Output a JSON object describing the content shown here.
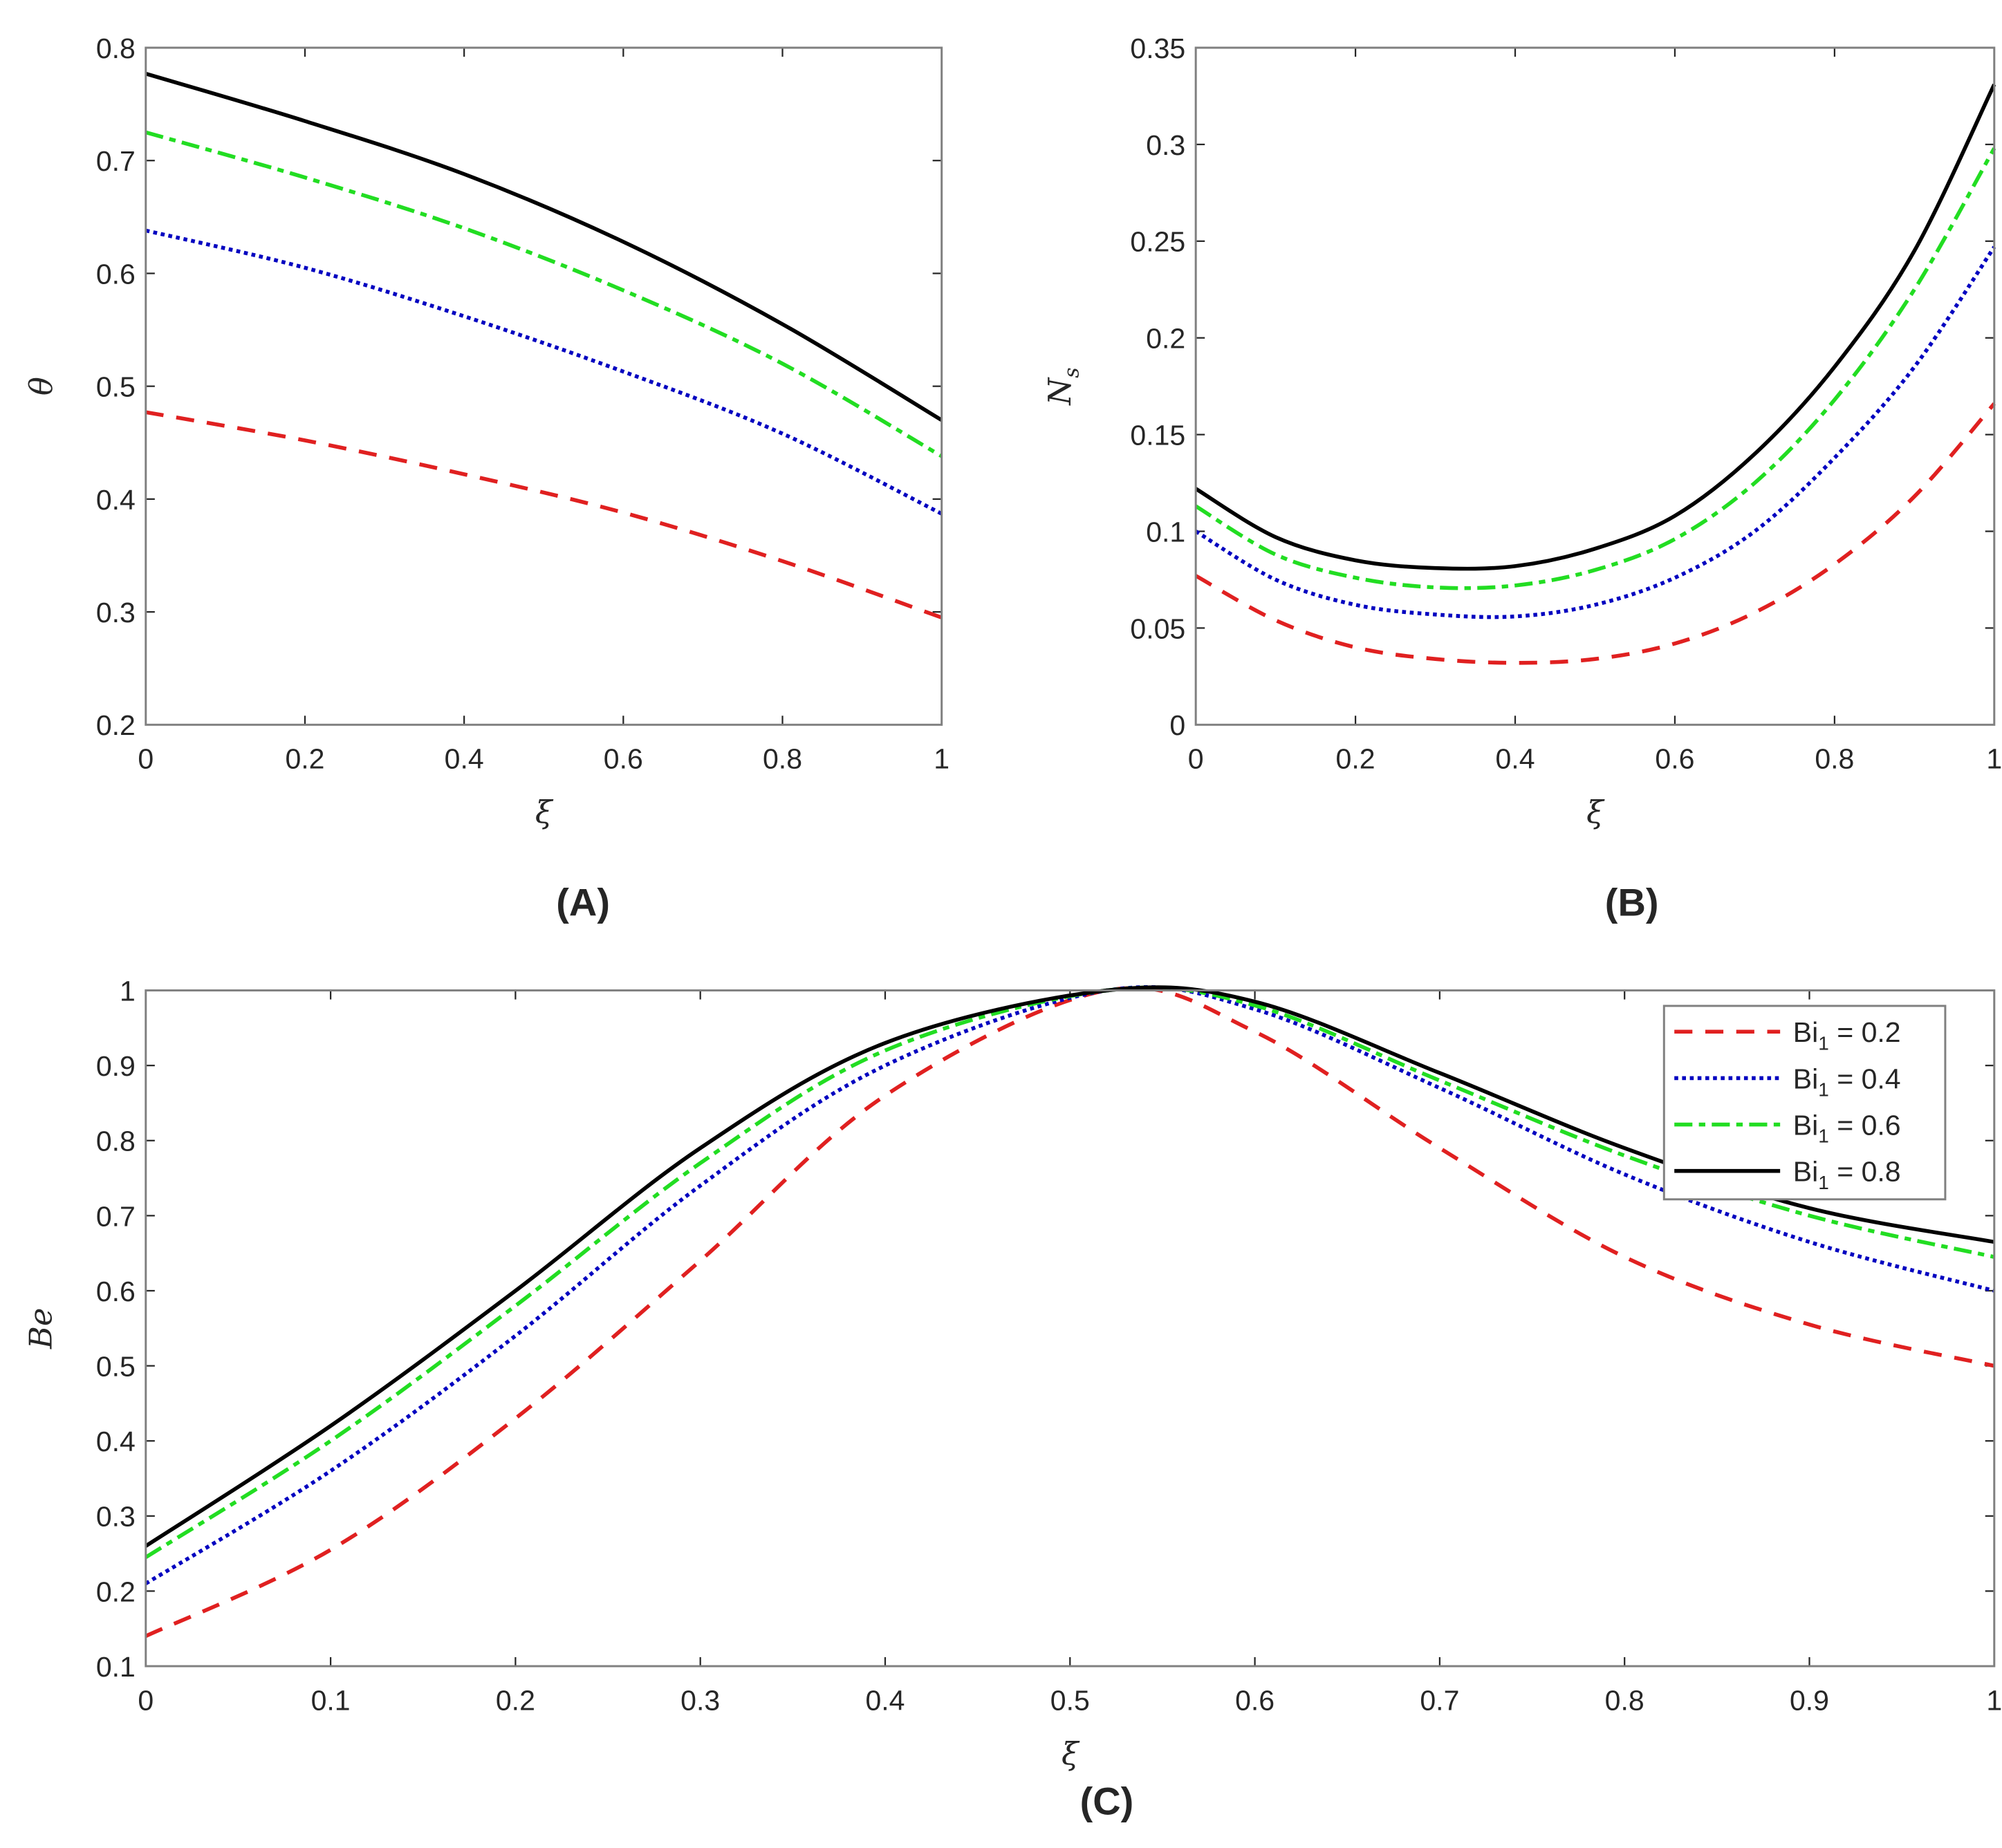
{
  "series_styles": [
    {
      "name": "Bi1 = 0.2",
      "color": "#e02020",
      "dash": "dashed"
    },
    {
      "name": "Bi1 = 0.4",
      "color": "#0000c0",
      "dash": "dotted"
    },
    {
      "name": "Bi1 = 0.6",
      "color": "#22dd22",
      "dash": "dash-dot"
    },
    {
      "name": "Bi1 = 0.8",
      "color": "#000000",
      "dash": "solid"
    }
  ],
  "legend": {
    "entries": [
      {
        "base": "Bi",
        "sub": "1",
        "rest": " = 0.2"
      },
      {
        "base": "Bi",
        "sub": "1",
        "rest": " = 0.4"
      },
      {
        "base": "Bi",
        "sub": "1",
        "rest": " = 0.6"
      },
      {
        "base": "Bi",
        "sub": "1",
        "rest": " = 0.8"
      }
    ],
    "placement": "top-right"
  },
  "chart_data": [
    {
      "type": "line",
      "panel_label": "(A)",
      "xlabel": "ξ",
      "ylabel": "θ",
      "ylabel_sub": "",
      "xlim": [
        0,
        1
      ],
      "ylim": [
        0.2,
        0.8
      ],
      "xticks": [
        "0",
        "0.2",
        "0.4",
        "0.6",
        "0.8",
        "1"
      ],
      "yticks": [
        "0.2",
        "0.3",
        "0.4",
        "0.5",
        "0.6",
        "0.7",
        "0.8"
      ],
      "x": [
        0,
        0.2,
        0.4,
        0.6,
        0.8,
        1
      ],
      "series": [
        {
          "name": "Bi1 = 0.2",
          "values": [
            0.477,
            0.452,
            0.422,
            0.388,
            0.345,
            0.295
          ]
        },
        {
          "name": "Bi1 = 0.4",
          "values": [
            0.638,
            0.605,
            0.562,
            0.513,
            0.458,
            0.387
          ]
        },
        {
          "name": "Bi1 = 0.6",
          "values": [
            0.725,
            0.685,
            0.64,
            0.585,
            0.52,
            0.438
          ]
        },
        {
          "name": "Bi1 = 0.8",
          "values": [
            0.777,
            0.735,
            0.688,
            0.628,
            0.555,
            0.47
          ]
        }
      ]
    },
    {
      "type": "line",
      "panel_label": "(B)",
      "xlabel": "ξ",
      "ylabel": "N",
      "ylabel_sub": "s",
      "xlim": [
        0,
        1
      ],
      "ylim": [
        0,
        0.35
      ],
      "xticks": [
        "0",
        "0.2",
        "0.4",
        "0.6",
        "0.8",
        "1"
      ],
      "yticks": [
        "0",
        "0.05",
        "0.1",
        "0.15",
        "0.2",
        "0.25",
        "0.3",
        "0.35"
      ],
      "x": [
        0,
        0.1,
        0.2,
        0.3,
        0.4,
        0.5,
        0.6,
        0.7,
        0.8,
        0.9,
        1
      ],
      "series": [
        {
          "name": "Bi1 = 0.2",
          "values": [
            0.077,
            0.054,
            0.04,
            0.034,
            0.032,
            0.034,
            0.042,
            0.058,
            0.083,
            0.118,
            0.166
          ]
        },
        {
          "name": "Bi1 = 0.4",
          "values": [
            0.1,
            0.075,
            0.062,
            0.057,
            0.056,
            0.062,
            0.076,
            0.1,
            0.138,
            0.185,
            0.247
          ]
        },
        {
          "name": "Bi1 = 0.6",
          "values": [
            0.113,
            0.088,
            0.076,
            0.071,
            0.072,
            0.08,
            0.096,
            0.125,
            0.168,
            0.225,
            0.298
          ]
        },
        {
          "name": "Bi1 = 0.8",
          "values": [
            0.122,
            0.097,
            0.085,
            0.081,
            0.082,
            0.091,
            0.108,
            0.14,
            0.185,
            0.245,
            0.331
          ]
        }
      ]
    },
    {
      "type": "line",
      "panel_label": "(C)",
      "xlabel": "ξ",
      "ylabel": "Be",
      "ylabel_sub": "",
      "xlim": [
        0,
        1
      ],
      "ylim": [
        0.1,
        1
      ],
      "xticks": [
        "0",
        "0.1",
        "0.2",
        "0.3",
        "0.4",
        "0.5",
        "0.6",
        "0.7",
        "0.8",
        "0.9",
        "1"
      ],
      "yticks": [
        "0.1",
        "0.2",
        "0.3",
        "0.4",
        "0.5",
        "0.6",
        "0.7",
        "0.8",
        "0.9",
        "1"
      ],
      "x": [
        0,
        0.1,
        0.2,
        0.3,
        0.4,
        0.52,
        0.6,
        0.7,
        0.8,
        0.9,
        1
      ],
      "series": [
        {
          "name": "Bi1 = 0.2",
          "values": [
            0.14,
            0.255,
            0.43,
            0.64,
            0.86,
            1.0,
            0.945,
            0.79,
            0.645,
            0.555,
            0.5
          ]
        },
        {
          "name": "Bi1 = 0.4",
          "values": [
            0.21,
            0.36,
            0.54,
            0.74,
            0.9,
            1.0,
            0.975,
            0.87,
            0.755,
            0.665,
            0.6
          ]
        },
        {
          "name": "Bi1 = 0.6",
          "values": [
            0.245,
            0.4,
            0.58,
            0.77,
            0.92,
            1.0,
            0.98,
            0.88,
            0.78,
            0.7,
            0.645
          ]
        },
        {
          "name": "Bi1 = 0.8",
          "values": [
            0.26,
            0.42,
            0.6,
            0.79,
            0.93,
            1.0,
            0.985,
            0.89,
            0.79,
            0.71,
            0.665
          ]
        }
      ]
    }
  ]
}
